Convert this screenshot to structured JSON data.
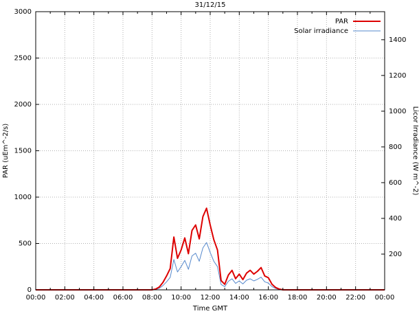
{
  "page": {
    "title": "31/12/15"
  },
  "colors": {
    "par_line": "#dd0000",
    "solar_line": "#5588cc",
    "grid": "#b0b0b0",
    "border": "#000000",
    "background": "#ffffff"
  },
  "chart_data": {
    "type": "line",
    "title": "31/12/15",
    "xlabel": "Time GMT",
    "ylabel": "PAR (uEm^-2/s)",
    "y2label": "Licor Irradiance (W m^-2)",
    "xlim": [
      0,
      24
    ],
    "ylim": [
      0,
      3000
    ],
    "y2lim": [
      0,
      1557
    ],
    "grid": true,
    "legend_position": "top-right",
    "x_tick_values": [
      0,
      2,
      4,
      6,
      8,
      10,
      12,
      14,
      16,
      18,
      20,
      22,
      24
    ],
    "x_tick_labels": [
      "00:00",
      "02:00",
      "04:00",
      "06:00",
      "08:00",
      "10:00",
      "12:00",
      "14:00",
      "16:00",
      "18:00",
      "20:00",
      "22:00",
      "00:00"
    ],
    "y_ticks": [
      0,
      500,
      1000,
      1500,
      2000,
      2500,
      3000
    ],
    "y2_ticks": [
      200,
      400,
      600,
      800,
      1000,
      1200,
      1400
    ],
    "x_start": 0,
    "x_step": 0.25,
    "x_unit": "hours GMT",
    "series": [
      {
        "name": "PAR",
        "axis": "y1",
        "color": "#dd0000",
        "width": 2,
        "values": [
          0,
          0,
          0,
          0,
          0,
          0,
          0,
          0,
          0,
          0,
          0,
          0,
          0,
          0,
          0,
          0,
          0,
          0,
          0,
          0,
          0,
          0,
          0,
          0,
          0,
          0,
          0,
          0,
          0,
          0,
          0,
          0,
          0,
          8,
          30,
          80,
          150,
          230,
          570,
          340,
          430,
          560,
          390,
          640,
          700,
          550,
          790,
          880,
          700,
          540,
          430,
          100,
          60,
          160,
          210,
          120,
          170,
          110,
          180,
          210,
          170,
          200,
          240,
          150,
          130,
          60,
          25,
          8,
          0,
          0,
          0,
          0,
          0,
          0,
          0,
          0,
          0,
          0,
          0,
          0,
          0,
          0,
          0,
          0,
          0,
          0,
          0,
          0,
          0,
          0,
          0,
          0,
          0,
          0,
          0,
          0,
          0
        ]
      },
      {
        "name": "Solar irradiance",
        "axis": "y2",
        "color": "#5588cc",
        "width": 1,
        "values": [
          0,
          0,
          0,
          0,
          0,
          0,
          0,
          0,
          0,
          0,
          0,
          0,
          0,
          0,
          0,
          0,
          0,
          0,
          0,
          0,
          0,
          0,
          0,
          0,
          0,
          0,
          0,
          0,
          0,
          0,
          0,
          0,
          0,
          2,
          9,
          24,
          45,
          70,
          170,
          100,
          130,
          165,
          115,
          190,
          205,
          160,
          235,
          265,
          210,
          160,
          130,
          30,
          18,
          48,
          62,
          36,
          50,
          33,
          54,
          62,
          50,
          59,
          71,
          45,
          38,
          18,
          8,
          2,
          0,
          0,
          0,
          0,
          0,
          0,
          0,
          0,
          0,
          0,
          0,
          0,
          0,
          0,
          0,
          0,
          0,
          0,
          0,
          0,
          0,
          0,
          0,
          0,
          0,
          0,
          0,
          0,
          0
        ]
      }
    ]
  }
}
